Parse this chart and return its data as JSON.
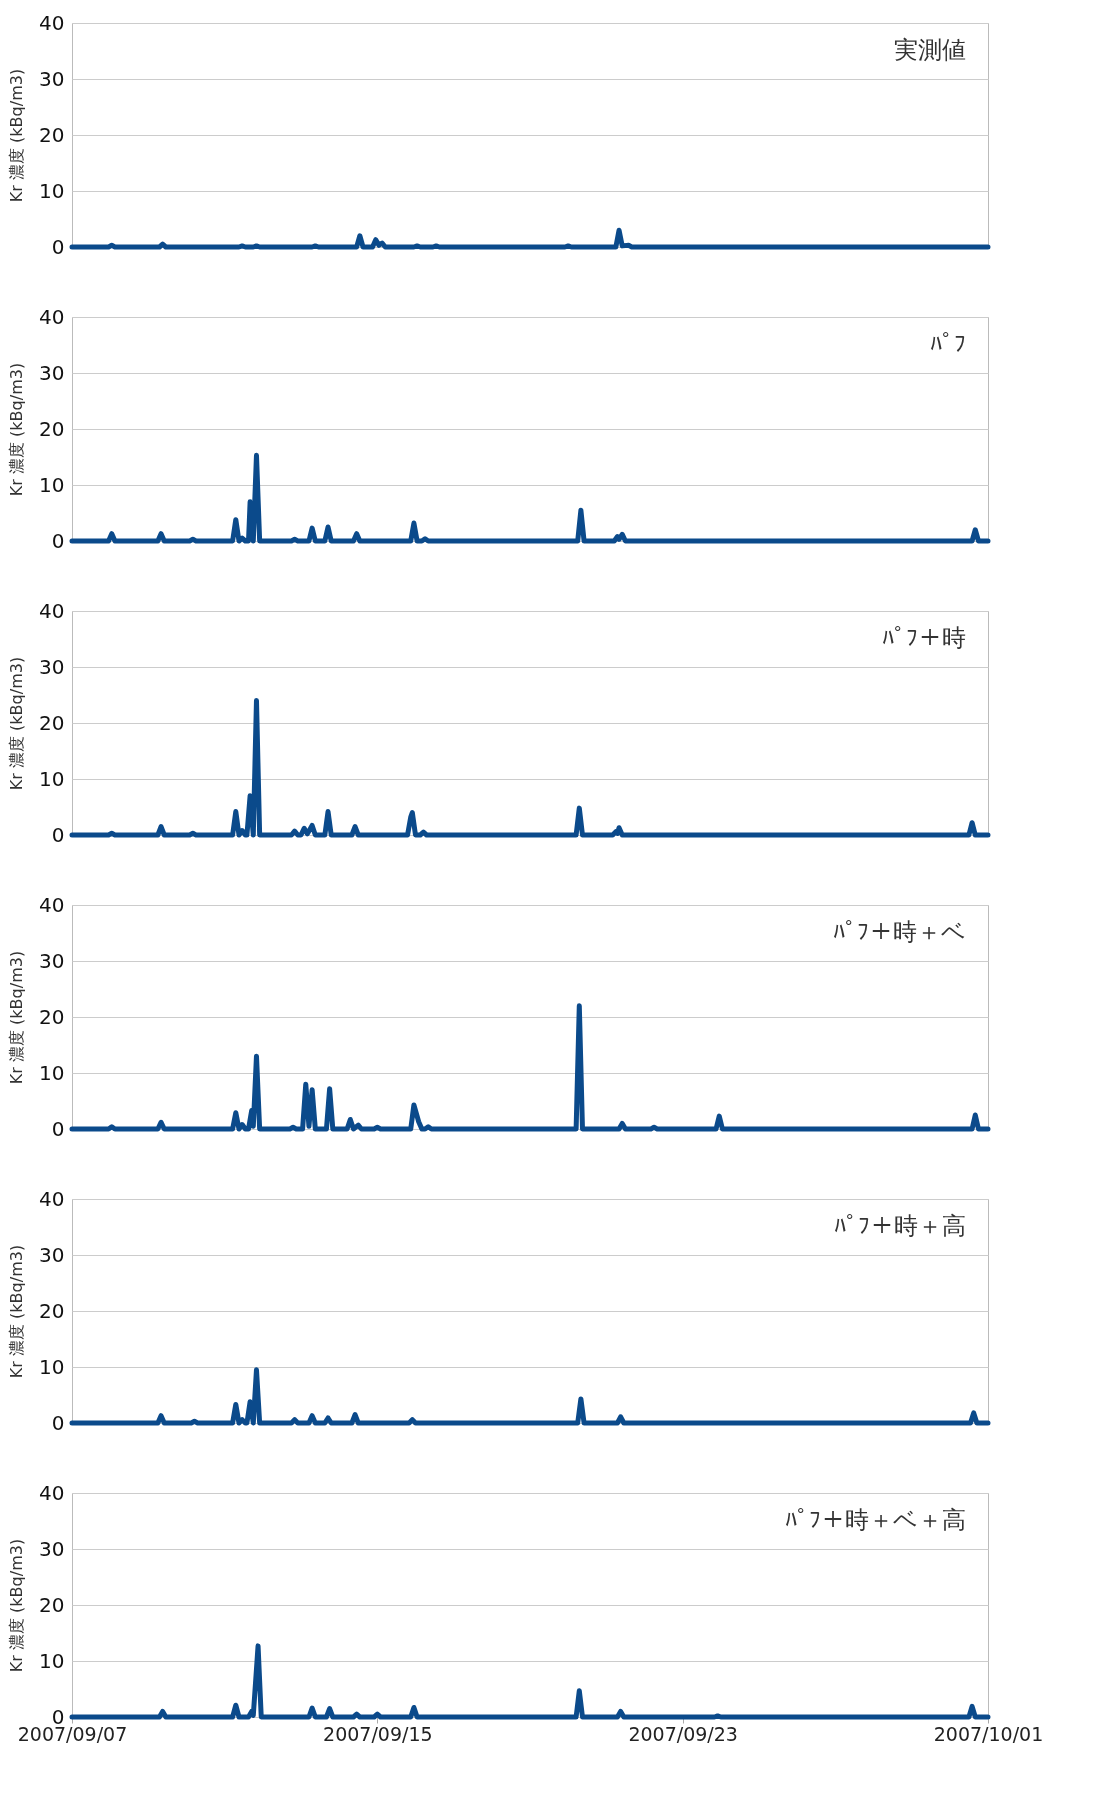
{
  "chart_data": [
    {
      "type": "line",
      "title": "実測値",
      "ylabel": "Kr 濃度 (kBq/m3)",
      "xlim": [
        "2007-09-07",
        "2007-10-01"
      ],
      "ylim": [
        0,
        40
      ],
      "yticks": [
        0,
        10,
        20,
        30,
        40
      ],
      "grid": "y",
      "tick_labels": "y",
      "series": [
        {
          "color": "#0b4a8b",
          "x": [
            "2007-09-07T00:00",
            "2007-09-07T23:00",
            "2007-09-08T01:00",
            "2007-09-08T03:00",
            "2007-09-09T07:00",
            "2007-09-09T09:00",
            "2007-09-09T11:00",
            "2007-09-11T09:00",
            "2007-09-11T11:00",
            "2007-09-11T13:00",
            "2007-09-11T18:00",
            "2007-09-11T20:00",
            "2007-09-11T22:00",
            "2007-09-13T07:00",
            "2007-09-13T09:00",
            "2007-09-13T11:00",
            "2007-09-14T11:00",
            "2007-09-14T13:00",
            "2007-09-14T15:00",
            "2007-09-14T21:00",
            "2007-09-14T23:00",
            "2007-09-15T01:00",
            "2007-09-15T03:00",
            "2007-09-15T05:00",
            "2007-09-15T23:00",
            "2007-09-16T01:00",
            "2007-09-16T03:00",
            "2007-09-16T11:00",
            "2007-09-16T13:00",
            "2007-09-16T15:00",
            "2007-09-19T22:00",
            "2007-09-20T00:00",
            "2007-09-20T02:00",
            "2007-09-21T06:00",
            "2007-09-21T08:00",
            "2007-09-21T10:00",
            "2007-09-21T14:00",
            "2007-09-21T16:00",
            "2007-10-01T00:00"
          ],
          "values": [
            0,
            0,
            0.3,
            0,
            0,
            0.5,
            0,
            0,
            0.2,
            0,
            0,
            0.2,
            0,
            0,
            0.2,
            0,
            0,
            2.0,
            0,
            0,
            1.3,
            0.3,
            0.7,
            0,
            0,
            0.2,
            0,
            0,
            0.2,
            0,
            0,
            0.2,
            0,
            0,
            3.0,
            0.2,
            0.3,
            0,
            0
          ]
        }
      ]
    },
    {
      "type": "line",
      "title": "ﾊﾟﾌ",
      "ylabel": "Kr 濃度 (kBq/m3)",
      "xlim": [
        "2007-09-07",
        "2007-10-01"
      ],
      "ylim": [
        0,
        40
      ],
      "yticks": [
        0,
        10,
        20,
        30,
        40
      ],
      "grid": "y",
      "tick_labels": "y",
      "series": [
        {
          "color": "#0b4a8b",
          "x": [
            "2007-09-07T00:00",
            "2007-09-07T23:00",
            "2007-09-08T01:00",
            "2007-09-08T03:00",
            "2007-09-09T06:00",
            "2007-09-09T08:00",
            "2007-09-09T10:00",
            "2007-09-10T02:00",
            "2007-09-10T04:00",
            "2007-09-10T06:00",
            "2007-09-11T05:00",
            "2007-09-11T07:00",
            "2007-09-11T09:00",
            "2007-09-11T11:00",
            "2007-09-11T13:00",
            "2007-09-11T15:00",
            "2007-09-11T16:00",
            "2007-09-11T18:00",
            "2007-09-11T20:00",
            "2007-09-11T22:00",
            "2007-09-12T18:00",
            "2007-09-12T20:00",
            "2007-09-12T22:00",
            "2007-09-13T05:00",
            "2007-09-13T07:00",
            "2007-09-13T09:00",
            "2007-09-13T15:00",
            "2007-09-13T17:00",
            "2007-09-13T19:00",
            "2007-09-14T09:00",
            "2007-09-14T11:00",
            "2007-09-14T13:00",
            "2007-09-15T21:00",
            "2007-09-15T23:00",
            "2007-09-16T01:00",
            "2007-09-16T04:00",
            "2007-09-16T06:00",
            "2007-09-16T08:00",
            "2007-09-20T06:00",
            "2007-09-20T08:00",
            "2007-09-20T10:00",
            "2007-09-21T05:00",
            "2007-09-21T07:00",
            "2007-09-21T08:00",
            "2007-09-21T10:00",
            "2007-09-21T12:00",
            "2007-09-30T14:00",
            "2007-09-30T16:00",
            "2007-09-30T18:00",
            "2007-10-01T00:00"
          ],
          "values": [
            0,
            0,
            1.3,
            0,
            0,
            1.3,
            0,
            0,
            0.3,
            0,
            0,
            3.8,
            0,
            0.5,
            0,
            0,
            7.0,
            0,
            15.3,
            0,
            0,
            0.3,
            0,
            0,
            2.3,
            0,
            0,
            2.5,
            0,
            0,
            1.3,
            0,
            0,
            3.2,
            0,
            0,
            0.4,
            0,
            0,
            5.5,
            0,
            0,
            0.8,
            0.3,
            1.2,
            0,
            0,
            2.0,
            0,
            0
          ]
        }
      ]
    },
    {
      "type": "line",
      "title": "ﾊﾟﾌ＋時",
      "ylabel": "Kr 濃度 (kBq/m3)",
      "xlim": [
        "2007-09-07",
        "2007-10-01"
      ],
      "ylim": [
        0,
        40
      ],
      "yticks": [
        0,
        10,
        20,
        30,
        40
      ],
      "grid": "y",
      "tick_labels": "y",
      "series": [
        {
          "color": "#0b4a8b",
          "x": [
            "2007-09-07T00:00",
            "2007-09-07T23:00",
            "2007-09-08T01:00",
            "2007-09-08T03:00",
            "2007-09-09T06:00",
            "2007-09-09T08:00",
            "2007-09-09T10:00",
            "2007-09-10T02:00",
            "2007-09-10T04:00",
            "2007-09-10T06:00",
            "2007-09-11T05:00",
            "2007-09-11T07:00",
            "2007-09-11T09:00",
            "2007-09-11T11:00",
            "2007-09-11T13:00",
            "2007-09-11T14:00",
            "2007-09-11T16:00",
            "2007-09-11T18:00",
            "2007-09-11T20:00",
            "2007-09-11T22:00",
            "2007-09-12T18:00",
            "2007-09-12T20:00",
            "2007-09-12T22:00",
            "2007-09-13T00:00",
            "2007-09-13T02:00",
            "2007-09-13T04:00",
            "2007-09-13T07:00",
            "2007-09-13T09:00",
            "2007-09-13T15:00",
            "2007-09-13T17:00",
            "2007-09-13T19:00",
            "2007-09-14T08:00",
            "2007-09-14T10:00",
            "2007-09-14T12:00",
            "2007-09-15T19:00",
            "2007-09-15T21:00",
            "2007-09-15T22:00",
            "2007-09-16T00:00",
            "2007-09-16T03:00",
            "2007-09-16T05:00",
            "2007-09-16T07:00",
            "2007-09-20T05:00",
            "2007-09-20T07:00",
            "2007-09-20T09:00",
            "2007-09-21T04:00",
            "2007-09-21T06:00",
            "2007-09-21T07:00",
            "2007-09-21T08:00",
            "2007-09-21T10:00",
            "2007-09-30T12:00",
            "2007-09-30T14:00",
            "2007-09-30T16:00",
            "2007-10-01T00:00"
          ],
          "values": [
            0,
            0,
            0.3,
            0,
            0,
            1.5,
            0,
            0,
            0.3,
            0,
            0,
            4.2,
            0,
            0.8,
            0,
            0,
            7.0,
            0,
            24.0,
            0,
            0,
            0.7,
            0,
            0,
            1.2,
            0.2,
            1.7,
            0,
            0,
            4.2,
            0,
            0,
            1.5,
            0,
            0,
            3.2,
            4.0,
            0,
            0,
            0.5,
            0,
            0,
            4.8,
            0,
            0,
            0.6,
            0.3,
            1.3,
            0,
            0,
            2.2,
            0,
            0
          ]
        }
      ]
    },
    {
      "type": "line",
      "title": "ﾊﾟﾌ＋時＋ベ",
      "ylabel": "Kr 濃度 (kBq/m3)",
      "xlim": [
        "2007-09-07",
        "2007-10-01"
      ],
      "ylim": [
        0,
        40
      ],
      "yticks": [
        0,
        10,
        20,
        30,
        40
      ],
      "grid": "y",
      "tick_labels": "y",
      "series": [
        {
          "color": "#0b4a8b",
          "x": [
            "2007-09-07T00:00",
            "2007-09-07T23:00",
            "2007-09-08T01:00",
            "2007-09-08T03:00",
            "2007-09-09T06:00",
            "2007-09-09T08:00",
            "2007-09-09T10:00",
            "2007-09-11T05:00",
            "2007-09-11T07:00",
            "2007-09-11T09:00",
            "2007-09-11T11:00",
            "2007-09-11T13:00",
            "2007-09-11T15:00",
            "2007-09-11T17:00",
            "2007-09-11T18:00",
            "2007-09-11T20:00",
            "2007-09-11T22:00",
            "2007-09-12T17:00",
            "2007-09-12T19:00",
            "2007-09-12T21:00",
            "2007-09-13T01:00",
            "2007-09-13T03:00",
            "2007-09-13T05:00",
            "2007-09-13T07:00",
            "2007-09-13T09:00",
            "2007-09-13T16:00",
            "2007-09-13T18:00",
            "2007-09-13T20:00",
            "2007-09-14T05:00",
            "2007-09-14T07:00",
            "2007-09-14T09:00",
            "2007-09-14T12:00",
            "2007-09-14T14:00",
            "2007-09-14T22:00",
            "2007-09-15T00:00",
            "2007-09-15T02:00",
            "2007-09-15T21:00",
            "2007-09-15T23:00",
            "2007-09-16T02:00",
            "2007-09-16T04:00",
            "2007-09-16T06:00",
            "2007-09-16T08:00",
            "2007-09-16T10:00",
            "2007-09-20T05:00",
            "2007-09-20T07:00",
            "2007-09-20T09:00",
            "2007-09-21T08:00",
            "2007-09-21T10:00",
            "2007-09-21T12:00",
            "2007-09-22T04:00",
            "2007-09-22T06:00",
            "2007-09-22T08:00",
            "2007-09-23T21:00",
            "2007-09-23T23:00",
            "2007-09-24T01:00",
            "2007-09-30T14:00",
            "2007-09-30T16:00",
            "2007-09-30T18:00",
            "2007-10-01T00:00"
          ],
          "values": [
            0,
            0,
            0.4,
            0,
            0,
            1.2,
            0,
            0,
            2.9,
            0,
            0.8,
            0,
            0,
            3.3,
            0.5,
            13.0,
            0,
            0,
            0.3,
            0,
            0,
            8.0,
            0.5,
            7.0,
            0,
            0,
            7.2,
            0,
            0,
            1.7,
            0,
            0.7,
            0,
            0,
            0.3,
            0,
            0,
            4.3,
            1.3,
            0,
            0,
            0.4,
            0,
            0,
            22.0,
            0,
            0,
            1.0,
            0,
            0,
            0.3,
            0,
            0,
            2.3,
            0,
            0,
            2.5,
            0,
            0
          ]
        }
      ]
    },
    {
      "type": "line",
      "title": "ﾊﾟﾌ＋時＋高",
      "ylabel": "Kr 濃度 (kBq/m3)",
      "xlim": [
        "2007-09-07",
        "2007-10-01"
      ],
      "ylim": [
        0,
        40
      ],
      "yticks": [
        0,
        10,
        20,
        30,
        40
      ],
      "grid": "y",
      "tick_labels": "y",
      "series": [
        {
          "color": "#0b4a8b",
          "x": [
            "2007-09-07T00:00",
            "2007-09-09T06:00",
            "2007-09-09T08:00",
            "2007-09-09T10:00",
            "2007-09-10T03:00",
            "2007-09-10T05:00",
            "2007-09-10T07:00",
            "2007-09-11T05:00",
            "2007-09-11T07:00",
            "2007-09-11T09:00",
            "2007-09-11T11:00",
            "2007-09-11T13:00",
            "2007-09-11T14:00",
            "2007-09-11T16:00",
            "2007-09-11T18:00",
            "2007-09-11T20:00",
            "2007-09-11T22:00",
            "2007-09-12T18:00",
            "2007-09-12T20:00",
            "2007-09-12T22:00",
            "2007-09-13T05:00",
            "2007-09-13T07:00",
            "2007-09-13T09:00",
            "2007-09-13T15:00",
            "2007-09-13T17:00",
            "2007-09-13T19:00",
            "2007-09-14T08:00",
            "2007-09-14T10:00",
            "2007-09-14T12:00",
            "2007-09-15T20:00",
            "2007-09-15T22:00",
            "2007-09-16T00:00",
            "2007-09-20T06:00",
            "2007-09-20T08:00",
            "2007-09-20T10:00",
            "2007-09-21T07:00",
            "2007-09-21T09:00",
            "2007-09-21T11:00",
            "2007-09-30T13:00",
            "2007-09-30T15:00",
            "2007-09-30T17:00",
            "2007-10-01T00:00"
          ],
          "values": [
            0,
            0,
            1.3,
            0,
            0,
            0.3,
            0,
            0,
            3.3,
            0,
            0.6,
            0,
            0,
            3.8,
            0,
            9.5,
            0,
            0,
            0.6,
            0,
            0,
            1.3,
            0,
            0,
            0.9,
            0,
            0,
            1.5,
            0,
            0,
            0.6,
            0,
            0,
            4.3,
            0,
            0,
            1.1,
            0,
            0,
            1.8,
            0,
            0
          ]
        }
      ]
    },
    {
      "type": "line",
      "title": "ﾊﾟﾌ＋時＋ベ＋高",
      "ylabel": "Kr 濃度 (kBq/m3)",
      "xlim": [
        "2007-09-07",
        "2007-10-01"
      ],
      "ylim": [
        0,
        40
      ],
      "yticks": [
        0,
        10,
        20,
        30,
        40
      ],
      "grid": "y",
      "xticks": [
        {
          "value": "2007-09-07",
          "label": "2007/09/07"
        },
        {
          "value": "2007-09-15",
          "label": "2007/09/15"
        },
        {
          "value": "2007-09-23",
          "label": "2007/09/23"
        },
        {
          "value": "2007-10-01",
          "label": "2007/10/01"
        }
      ],
      "series": [
        {
          "color": "#0b4a8b",
          "x": [
            "2007-09-07T00:00",
            "2007-09-09T07:00",
            "2007-09-09T09:00",
            "2007-09-09T11:00",
            "2007-09-11T05:00",
            "2007-09-11T07:00",
            "2007-09-11T09:00",
            "2007-09-11T15:00",
            "2007-09-11T17:00",
            "2007-09-11T18:00",
            "2007-09-11T21:00",
            "2007-09-11T23:00",
            "2007-09-13T05:00",
            "2007-09-13T07:00",
            "2007-09-13T09:00",
            "2007-09-13T16:00",
            "2007-09-13T18:00",
            "2007-09-13T20:00",
            "2007-09-14T09:00",
            "2007-09-14T11:00",
            "2007-09-14T13:00",
            "2007-09-14T22:00",
            "2007-09-15T00:00",
            "2007-09-15T02:00",
            "2007-09-15T21:00",
            "2007-09-15T23:00",
            "2007-09-16T01:00",
            "2007-09-20T05:00",
            "2007-09-20T07:00",
            "2007-09-20T09:00",
            "2007-09-21T07:00",
            "2007-09-21T09:00",
            "2007-09-21T11:00",
            "2007-09-23T20:00",
            "2007-09-23T22:00",
            "2007-09-24T00:00",
            "2007-09-30T12:00",
            "2007-09-30T14:00",
            "2007-09-30T16:00",
            "2007-10-01T00:00"
          ],
          "values": [
            0,
            0,
            1.0,
            0,
            0,
            2.1,
            0,
            0,
            1.0,
            0.3,
            12.7,
            0,
            0,
            1.6,
            0,
            0,
            1.5,
            0,
            0,
            0.5,
            0,
            0,
            0.5,
            0,
            0,
            1.7,
            0,
            0,
            4.7,
            0,
            0,
            1.0,
            0,
            0,
            0.2,
            0,
            0,
            1.9,
            0,
            0
          ]
        }
      ]
    }
  ]
}
